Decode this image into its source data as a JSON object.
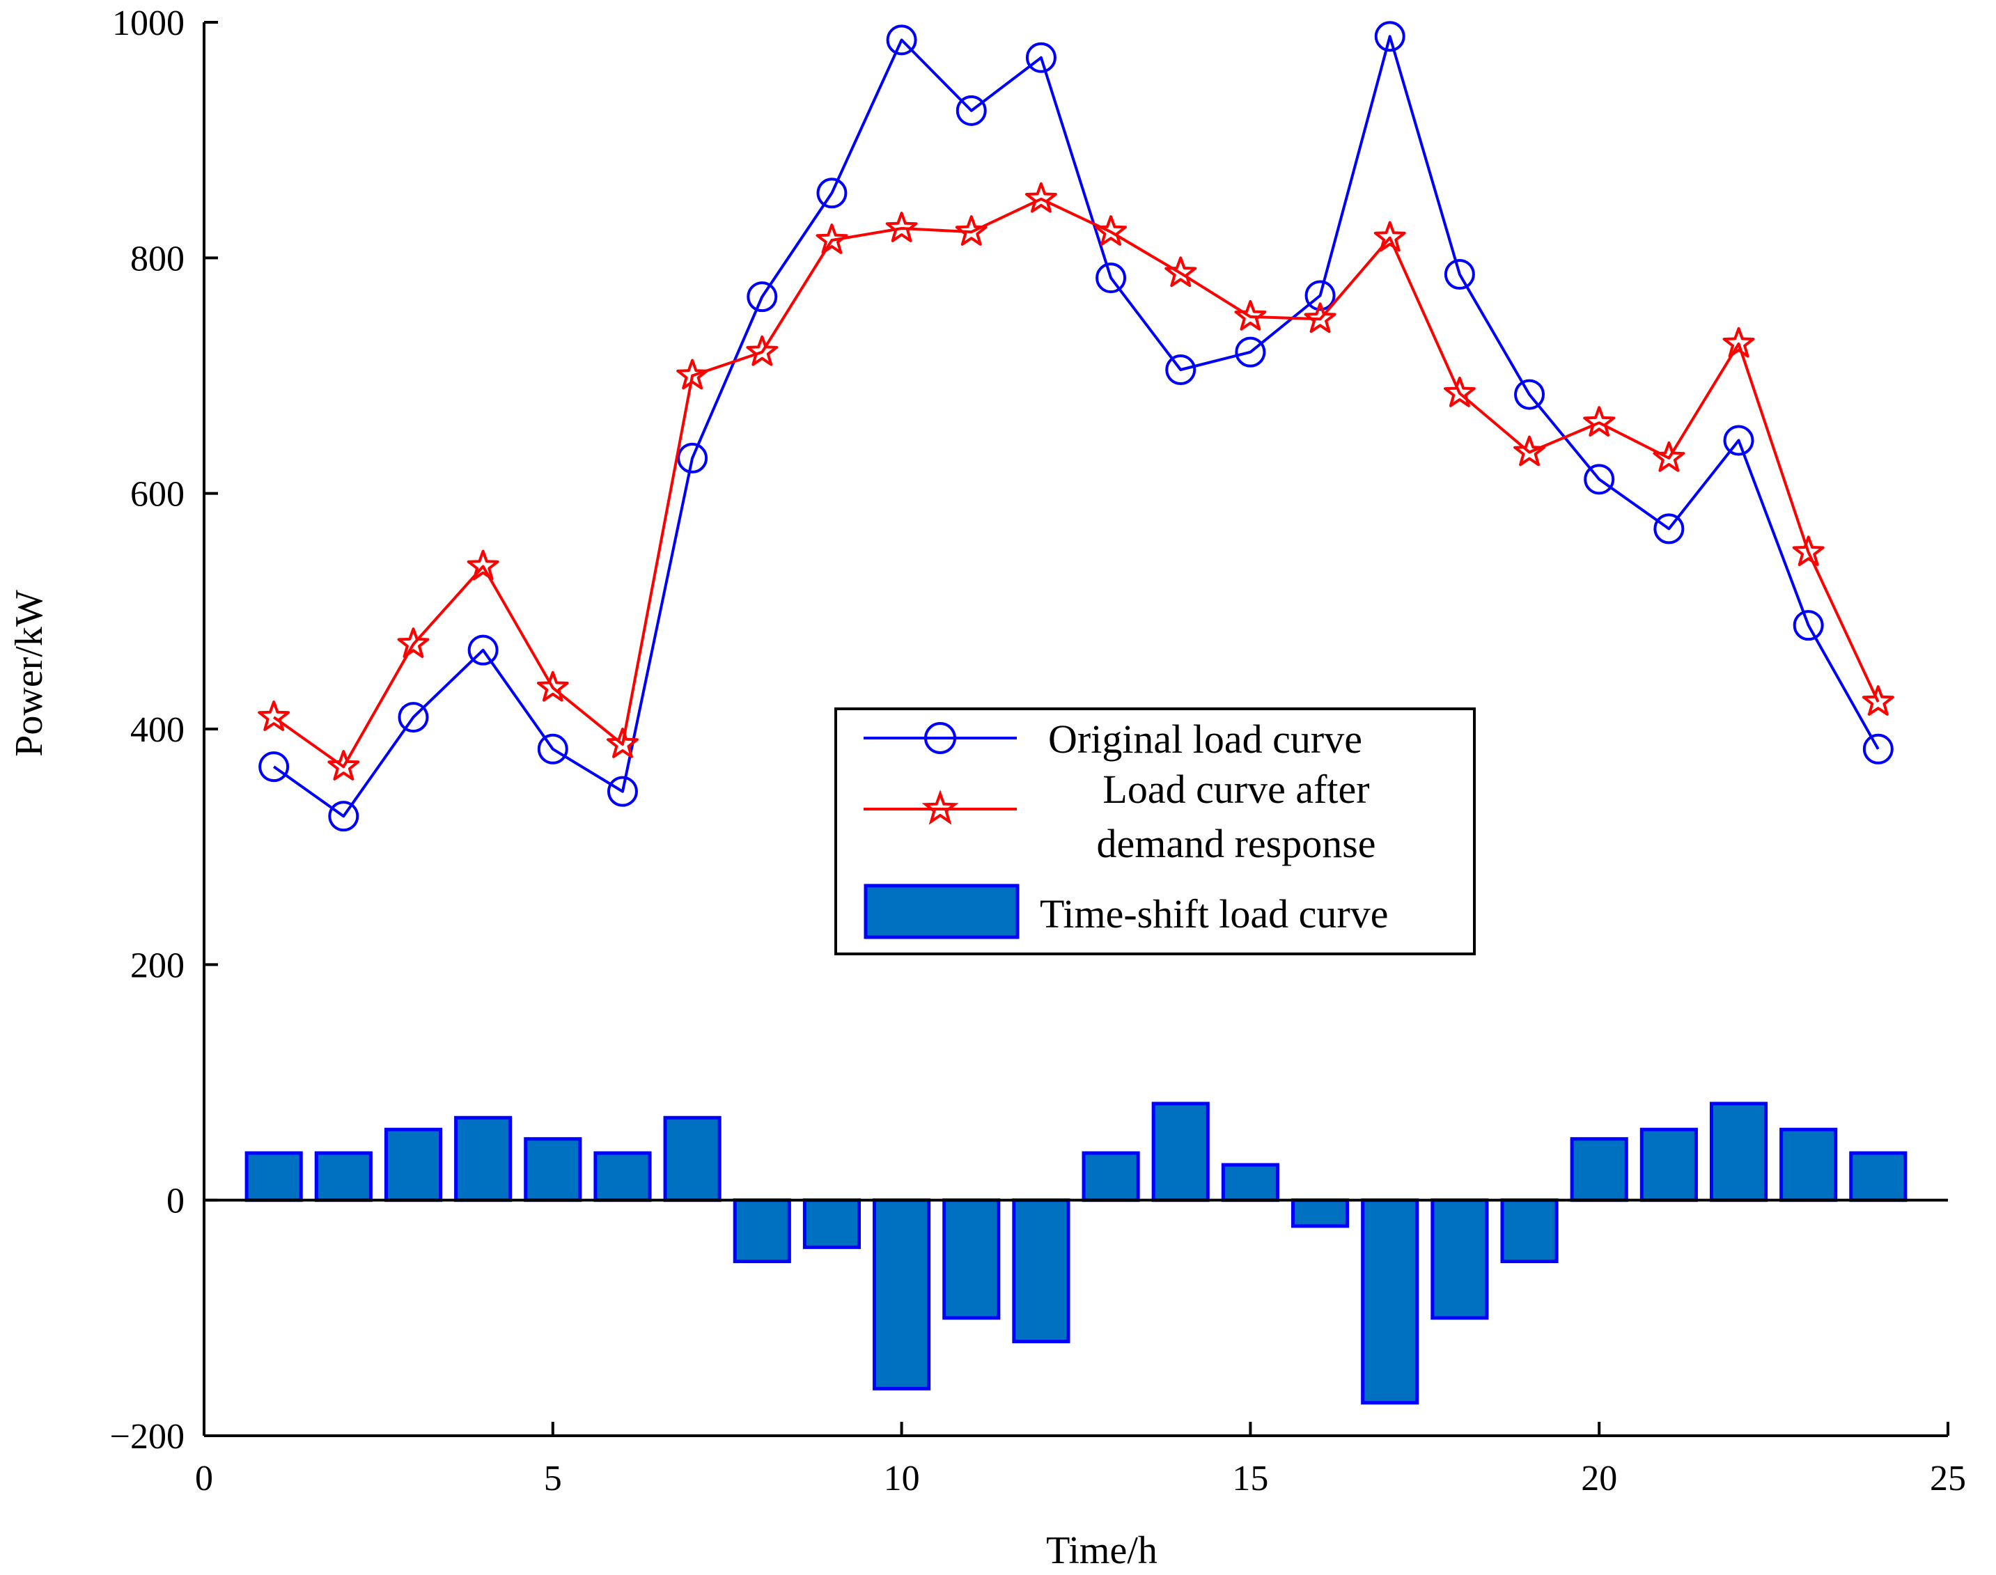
{
  "chart_data": {
    "type": "line",
    "title": "",
    "xlabel": "Time/h",
    "ylabel": "Power/kW",
    "xlim": [
      0,
      25
    ],
    "ylim": [
      -200,
      1000
    ],
    "xticks": [
      0,
      5,
      10,
      15,
      20,
      25
    ],
    "yticks": [
      -200,
      0,
      200,
      400,
      600,
      800,
      1000
    ],
    "x": [
      1,
      2,
      3,
      4,
      5,
      6,
      7,
      8,
      9,
      10,
      11,
      12,
      13,
      14,
      15,
      16,
      17,
      18,
      19,
      20,
      21,
      22,
      23,
      24
    ],
    "series": [
      {
        "name": "Original load curve",
        "kind": "line",
        "marker": "circle",
        "color": "#0000ff",
        "values": [
          368,
          326,
          410,
          467,
          383,
          347,
          630,
          767,
          855,
          985,
          925,
          970,
          783,
          705,
          720,
          768,
          988,
          786,
          684,
          612,
          570,
          645,
          488,
          383
        ]
      },
      {
        "name": "Load curve after demand response",
        "kind": "line",
        "marker": "star",
        "color": "#ff0000",
        "values": [
          410,
          368,
          472,
          538,
          435,
          387,
          700,
          720,
          815,
          825,
          822,
          850,
          822,
          787,
          750,
          748,
          817,
          685,
          635,
          660,
          630,
          727,
          550,
          423
        ]
      },
      {
        "name": "Time-shift load curve",
        "kind": "bar",
        "color": "#0070c0",
        "edge_color": "#0000ff",
        "values": [
          40,
          40,
          60,
          70,
          52,
          40,
          70,
          -52,
          -40,
          -160,
          -100,
          -120,
          40,
          82,
          30,
          -22,
          -172,
          -100,
          -52,
          52,
          60,
          82,
          60,
          40
        ]
      }
    ],
    "legend": {
      "position": "center-right",
      "entries": [
        "Original load curve",
        "Load curve after demand response",
        "Time-shift load curve"
      ],
      "line1": "Original load curve",
      "line2a": "Load curve after",
      "line2b": "demand response",
      "line3": "Time-shift load curve"
    }
  }
}
